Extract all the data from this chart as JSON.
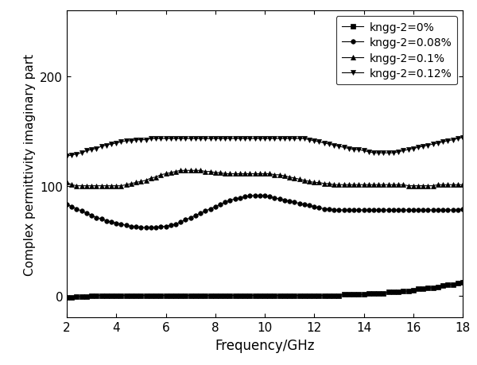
{
  "title": "",
  "xlabel": "Frequency/GHz",
  "ylabel": "Complex permittivity imaginary part",
  "xlim": [
    2,
    18
  ],
  "ylim": [
    -20,
    260
  ],
  "yticks": [
    0,
    100,
    200
  ],
  "xticks": [
    2,
    4,
    6,
    8,
    10,
    12,
    14,
    16,
    18
  ],
  "legend_labels": [
    "kngg-2=0%",
    "kngg-2=0.08%",
    "kngg-2=0.1%",
    "kngg-2=0.12%"
  ],
  "markers": [
    "s",
    "o",
    "^",
    "v"
  ],
  "colors": [
    "#000000",
    "#000000",
    "#000000",
    "#000000"
  ],
  "markersize": 4,
  "linewidth": 0.8,
  "series": {
    "0pct": {
      "x": [
        2.0,
        2.2,
        2.4,
        2.6,
        2.8,
        3.0,
        3.2,
        3.4,
        3.6,
        3.8,
        4.0,
        4.2,
        4.4,
        4.6,
        4.8,
        5.0,
        5.2,
        5.4,
        5.6,
        5.8,
        6.0,
        6.2,
        6.4,
        6.6,
        6.8,
        7.0,
        7.2,
        7.4,
        7.6,
        7.8,
        8.0,
        8.2,
        8.4,
        8.6,
        8.8,
        9.0,
        9.2,
        9.4,
        9.6,
        9.8,
        10.0,
        10.2,
        10.4,
        10.6,
        10.8,
        11.0,
        11.2,
        11.4,
        11.6,
        11.8,
        12.0,
        12.2,
        12.4,
        12.6,
        12.8,
        13.0,
        13.2,
        13.4,
        13.6,
        13.8,
        14.0,
        14.2,
        14.4,
        14.6,
        14.8,
        15.0,
        15.2,
        15.4,
        15.6,
        15.8,
        16.0,
        16.2,
        16.4,
        16.6,
        16.8,
        17.0,
        17.2,
        17.4,
        17.6,
        17.8,
        18.0
      ],
      "y": [
        -2,
        -2,
        -1,
        -1,
        -1,
        0,
        0,
        0,
        0,
        0,
        0,
        0,
        0,
        0,
        0,
        0,
        0,
        0,
        0,
        0,
        0,
        0,
        0,
        0,
        0,
        0,
        0,
        0,
        0,
        0,
        0,
        0,
        0,
        0,
        0,
        0,
        0,
        0,
        0,
        0,
        0,
        0,
        0,
        0,
        0,
        0,
        0,
        0,
        0,
        0,
        0,
        0,
        0,
        0,
        0,
        0,
        1,
        1,
        1,
        1,
        1,
        2,
        2,
        2,
        2,
        3,
        3,
        3,
        4,
        4,
        5,
        6,
        6,
        7,
        7,
        8,
        9,
        10,
        10,
        11,
        12
      ]
    },
    "008pct": {
      "x": [
        2.0,
        2.2,
        2.4,
        2.6,
        2.8,
        3.0,
        3.2,
        3.4,
        3.6,
        3.8,
        4.0,
        4.2,
        4.4,
        4.6,
        4.8,
        5.0,
        5.2,
        5.4,
        5.6,
        5.8,
        6.0,
        6.2,
        6.4,
        6.6,
        6.8,
        7.0,
        7.2,
        7.4,
        7.6,
        7.8,
        8.0,
        8.2,
        8.4,
        8.6,
        8.8,
        9.0,
        9.2,
        9.4,
        9.6,
        9.8,
        10.0,
        10.2,
        10.4,
        10.6,
        10.8,
        11.0,
        11.2,
        11.4,
        11.6,
        11.8,
        12.0,
        12.2,
        12.4,
        12.6,
        12.8,
        13.0,
        13.2,
        13.4,
        13.6,
        13.8,
        14.0,
        14.2,
        14.4,
        14.6,
        14.8,
        15.0,
        15.2,
        15.4,
        15.6,
        15.8,
        16.0,
        16.2,
        16.4,
        16.6,
        16.8,
        17.0,
        17.2,
        17.4,
        17.6,
        17.8,
        18.0
      ],
      "y": [
        83,
        81,
        79,
        77,
        75,
        73,
        71,
        70,
        68,
        67,
        66,
        65,
        64,
        63,
        63,
        62,
        62,
        62,
        62,
        63,
        63,
        64,
        65,
        67,
        69,
        71,
        73,
        75,
        77,
        79,
        81,
        83,
        85,
        87,
        88,
        89,
        90,
        91,
        91,
        91,
        91,
        90,
        89,
        88,
        87,
        86,
        85,
        84,
        83,
        82,
        81,
        80,
        79,
        79,
        78,
        78,
        78,
        78,
        78,
        78,
        78,
        78,
        78,
        78,
        78,
        78,
        78,
        78,
        78,
        78,
        78,
        78,
        78,
        78,
        78,
        78,
        78,
        78,
        78,
        78,
        79
      ]
    },
    "01pct": {
      "x": [
        2.0,
        2.2,
        2.4,
        2.6,
        2.8,
        3.0,
        3.2,
        3.4,
        3.6,
        3.8,
        4.0,
        4.2,
        4.4,
        4.6,
        4.8,
        5.0,
        5.2,
        5.4,
        5.6,
        5.8,
        6.0,
        6.2,
        6.4,
        6.6,
        6.8,
        7.0,
        7.2,
        7.4,
        7.6,
        7.8,
        8.0,
        8.2,
        8.4,
        8.6,
        8.8,
        9.0,
        9.2,
        9.4,
        9.6,
        9.8,
        10.0,
        10.2,
        10.4,
        10.6,
        10.8,
        11.0,
        11.2,
        11.4,
        11.6,
        11.8,
        12.0,
        12.2,
        12.4,
        12.6,
        12.8,
        13.0,
        13.2,
        13.4,
        13.6,
        13.8,
        14.0,
        14.2,
        14.4,
        14.6,
        14.8,
        15.0,
        15.2,
        15.4,
        15.6,
        15.8,
        16.0,
        16.2,
        16.4,
        16.6,
        16.8,
        17.0,
        17.2,
        17.4,
        17.6,
        17.8,
        18.0
      ],
      "y": [
        103,
        101,
        100,
        100,
        100,
        100,
        100,
        100,
        100,
        100,
        100,
        100,
        101,
        102,
        103,
        104,
        105,
        107,
        108,
        110,
        111,
        112,
        113,
        114,
        114,
        114,
        114,
        114,
        113,
        113,
        112,
        112,
        111,
        111,
        111,
        111,
        111,
        111,
        111,
        111,
        111,
        111,
        110,
        110,
        109,
        108,
        107,
        106,
        105,
        104,
        103,
        103,
        102,
        102,
        101,
        101,
        101,
        101,
        101,
        101,
        101,
        101,
        101,
        101,
        101,
        101,
        101,
        101,
        101,
        100,
        100,
        100,
        100,
        100,
        100,
        101,
        101,
        101,
        101,
        101,
        101
      ]
    },
    "012pct": {
      "x": [
        2.0,
        2.2,
        2.4,
        2.6,
        2.8,
        3.0,
        3.2,
        3.4,
        3.6,
        3.8,
        4.0,
        4.2,
        4.4,
        4.6,
        4.8,
        5.0,
        5.2,
        5.4,
        5.6,
        5.8,
        6.0,
        6.2,
        6.4,
        6.6,
        6.8,
        7.0,
        7.2,
        7.4,
        7.6,
        7.8,
        8.0,
        8.2,
        8.4,
        8.6,
        8.8,
        9.0,
        9.2,
        9.4,
        9.6,
        9.8,
        10.0,
        10.2,
        10.4,
        10.6,
        10.8,
        11.0,
        11.2,
        11.4,
        11.6,
        11.8,
        12.0,
        12.2,
        12.4,
        12.6,
        12.8,
        13.0,
        13.2,
        13.4,
        13.6,
        13.8,
        14.0,
        14.2,
        14.4,
        14.6,
        14.8,
        15.0,
        15.2,
        15.4,
        15.6,
        15.8,
        16.0,
        16.2,
        16.4,
        16.6,
        16.8,
        17.0,
        17.2,
        17.4,
        17.6,
        17.8,
        18.0
      ],
      "y": [
        127,
        128,
        129,
        130,
        132,
        133,
        134,
        136,
        137,
        138,
        139,
        140,
        141,
        141,
        142,
        142,
        142,
        143,
        143,
        143,
        143,
        143,
        143,
        143,
        143,
        143,
        143,
        143,
        143,
        143,
        143,
        143,
        143,
        143,
        143,
        143,
        143,
        143,
        143,
        143,
        143,
        143,
        143,
        143,
        143,
        143,
        143,
        143,
        143,
        142,
        141,
        140,
        139,
        138,
        137,
        136,
        135,
        134,
        133,
        133,
        132,
        131,
        130,
        130,
        130,
        130,
        130,
        131,
        132,
        133,
        134,
        135,
        136,
        137,
        138,
        139,
        140,
        141,
        142,
        143,
        144
      ]
    }
  }
}
